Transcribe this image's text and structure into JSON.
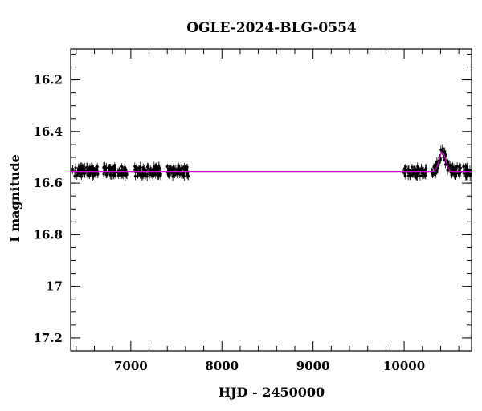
{
  "chart_data": {
    "type": "scatter",
    "title": "OGLE-2024-BLG-0554",
    "xlabel": "HJD - 2450000",
    "ylabel": "I magnitude",
    "xlim": [
      6340,
      10740
    ],
    "ylim": [
      17.25,
      16.08
    ],
    "y_inverted": true,
    "x_ticks": [
      7000,
      8000,
      9000,
      10000
    ],
    "x_tick_labels": [
      "7000",
      "8000",
      "9000",
      "10000"
    ],
    "y_ticks": [
      16.2,
      16.4,
      16.6,
      16.8,
      17.0,
      17.2
    ],
    "y_tick_labels": [
      "16.2",
      "16.4",
      "16.6",
      "16.8",
      "17",
      "17.2"
    ],
    "grid": false,
    "series": [
      {
        "kind": "points-with-errorbars",
        "color": "#000000",
        "seasons": [
          {
            "start": 6360,
            "end": 6640,
            "baseline": 16.555
          },
          {
            "start": 6700,
            "end": 6960,
            "baseline": 16.555
          },
          {
            "start": 7040,
            "end": 7330,
            "baseline": 16.555
          },
          {
            "start": 7400,
            "end": 7640,
            "baseline": 16.555
          },
          {
            "start": 9990,
            "end": 10250,
            "baseline": 16.555
          },
          {
            "start": 10300,
            "end": 10620,
            "baseline": 16.555,
            "has_peak": true
          },
          {
            "start": 10650,
            "end": 10740,
            "baseline": 16.555
          }
        ],
        "typical_error": 0.015
      },
      {
        "kind": "model",
        "color": "#cc00cc",
        "baseline": 16.555,
        "t0": 10420,
        "peak_mag": 16.48,
        "rise_start": 10310,
        "decay_end": 10620
      }
    ]
  }
}
